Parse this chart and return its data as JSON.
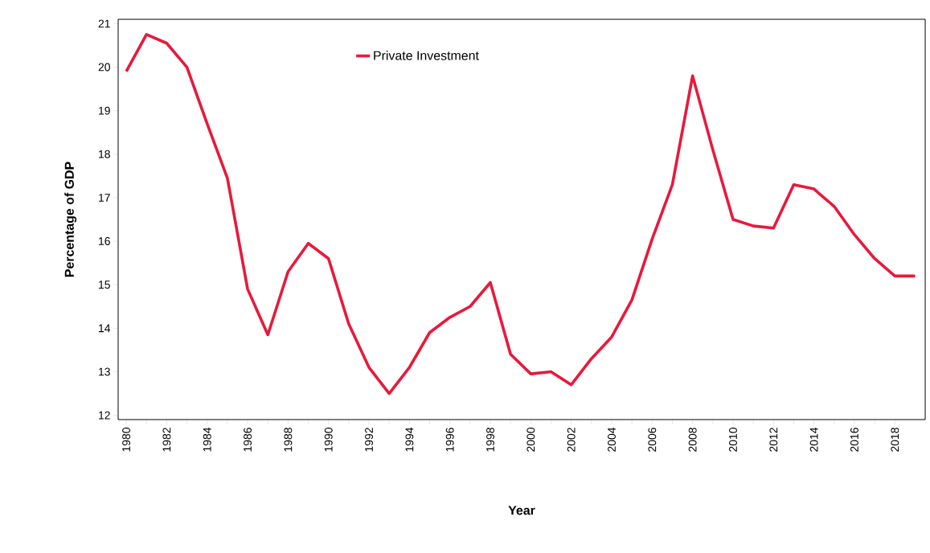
{
  "chart_data": {
    "type": "line",
    "xlabel": "Year",
    "ylabel": "Percentage of GDP",
    "x": [
      1980,
      1981,
      1982,
      1983,
      1984,
      1985,
      1986,
      1987,
      1988,
      1989,
      1990,
      1991,
      1992,
      1993,
      1994,
      1995,
      1996,
      1997,
      1998,
      1999,
      2000,
      2001,
      2002,
      2003,
      2004,
      2005,
      2006,
      2007,
      2008,
      2009,
      2010,
      2011,
      2012,
      2013,
      2014,
      2015,
      2016,
      2017,
      2018,
      2019
    ],
    "series": [
      {
        "name": "Private Investment",
        "color": "#e8193c",
        "values": [
          19.9,
          20.75,
          20.55,
          20.0,
          18.7,
          17.45,
          14.9,
          13.85,
          15.3,
          15.95,
          15.6,
          14.1,
          13.1,
          12.5,
          13.1,
          13.9,
          14.25,
          14.5,
          15.05,
          13.4,
          12.95,
          13.0,
          12.7,
          13.3,
          13.8,
          14.65,
          16.05,
          17.3,
          19.8,
          18.1,
          16.5,
          16.35,
          16.3,
          17.3,
          17.2,
          16.8,
          16.15,
          15.6,
          15.2,
          15.2
        ]
      }
    ],
    "xlim": [
      1979.6,
      2019.5
    ],
    "ylim": [
      11.9,
      21.1
    ],
    "xticks": [
      1980,
      1982,
      1984,
      1986,
      1988,
      1990,
      1992,
      1994,
      1996,
      1998,
      2000,
      2002,
      2004,
      2006,
      2008,
      2010,
      2012,
      2014,
      2016,
      2018
    ],
    "yticks": [
      12,
      13,
      14,
      15,
      16,
      17,
      18,
      19,
      20,
      21
    ],
    "legend": "top",
    "grid": false,
    "marker": "none",
    "line_style": "solid"
  }
}
